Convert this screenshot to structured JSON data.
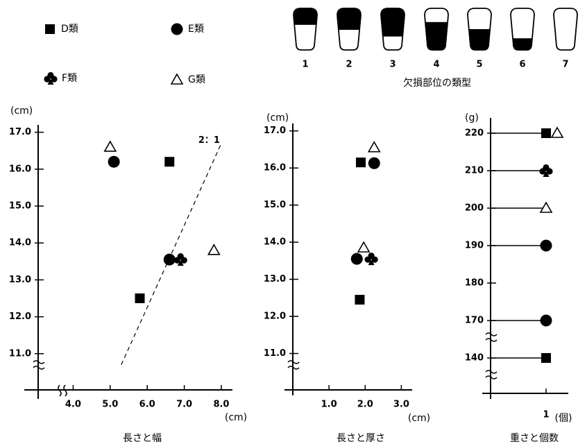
{
  "legend": [
    {
      "name": "D類",
      "marker": "square"
    },
    {
      "name": "E類",
      "marker": "circle"
    },
    {
      "name": "F類",
      "marker": "club"
    },
    {
      "name": "G類",
      "marker": "triangle"
    }
  ],
  "fracture_types": {
    "caption": "欠損部位の類型",
    "labels": [
      "1",
      "2",
      "3",
      "4",
      "5",
      "6",
      "7"
    ]
  },
  "chart_data": [
    {
      "type": "scatter",
      "title": "長さと幅",
      "xlabel": "(cm)",
      "ylabel": "(cm)",
      "xlim": [
        3.0,
        8.3
      ],
      "xticks": [
        {
          "value": 4,
          "label": "4.0"
        },
        {
          "value": 5,
          "label": "5.0"
        },
        {
          "value": 6,
          "label": "6.0"
        },
        {
          "value": 7,
          "label": "7.0"
        },
        {
          "value": 8,
          "label": "8.0"
        }
      ],
      "ylim": [
        10.0,
        17.2
      ],
      "yticks": [
        {
          "value": 11,
          "label": "11.0"
        },
        {
          "value": 12,
          "label": "12.0"
        },
        {
          "value": 13,
          "label": "13.0"
        },
        {
          "value": 14,
          "label": "14.0"
        },
        {
          "value": 15,
          "label": "15.0"
        },
        {
          "value": 16,
          "label": "16.0"
        },
        {
          "value": 17,
          "label": "17.0"
        }
      ],
      "reference_line": {
        "label": "2：1",
        "x": [
          5.3,
          8.0
        ],
        "y": [
          10.7,
          16.7
        ]
      },
      "series": [
        {
          "marker": "square",
          "color": "#000000",
          "x": [
            6.6,
            5.8
          ],
          "y": [
            16.2,
            12.5
          ]
        },
        {
          "marker": "circle",
          "color": "#000000",
          "x": [
            5.1,
            6.6
          ],
          "y": [
            16.2,
            13.55
          ]
        },
        {
          "marker": "club",
          "color": "#000000",
          "x": [
            6.9
          ],
          "y": [
            13.55
          ]
        },
        {
          "marker": "triangle",
          "color": "#000000",
          "x": [
            5.0,
            7.8
          ],
          "y": [
            16.6,
            13.8
          ]
        }
      ]
    },
    {
      "type": "scatter",
      "title": "長さと厚さ",
      "xlabel": "(cm)",
      "ylabel": "(cm)",
      "xlim": [
        0,
        3.3
      ],
      "xticks": [
        {
          "value": 1,
          "label": "1.0"
        },
        {
          "value": 2,
          "label": "2.0"
        },
        {
          "value": 3,
          "label": "3.0"
        }
      ],
      "ylim": [
        10.0,
        17.2
      ],
      "yticks": [
        {
          "value": 11,
          "label": "11.0"
        },
        {
          "value": 12,
          "label": "12.0"
        },
        {
          "value": 13,
          "label": "13.0"
        },
        {
          "value": 14,
          "label": "14.0"
        },
        {
          "value": 15,
          "label": "15.0"
        },
        {
          "value": 16,
          "label": "16.0"
        },
        {
          "value": 17,
          "label": "17.0"
        }
      ],
      "series": [
        {
          "marker": "square",
          "color": "#000000",
          "x": [
            1.88,
            1.85
          ],
          "y": [
            16.15,
            12.45
          ]
        },
        {
          "marker": "circle",
          "color": "#000000",
          "x": [
            2.25,
            1.77
          ],
          "y": [
            16.13,
            13.55
          ]
        },
        {
          "marker": "club",
          "color": "#000000",
          "x": [
            2.17
          ],
          "y": [
            13.55
          ]
        },
        {
          "marker": "triangle",
          "color": "#000000",
          "x": [
            2.25,
            1.96
          ],
          "y": [
            16.55,
            13.85
          ]
        }
      ]
    },
    {
      "type": "lollipop",
      "title": "重さと個数",
      "xlabel": "(個)",
      "ylabel": "(g)",
      "xlim": [
        0,
        1.4
      ],
      "xticks": [
        1
      ],
      "ylim": [
        130,
        224
      ],
      "ybreak": [
        140,
        170
      ],
      "yticks": [
        140,
        170,
        180,
        190,
        200,
        210,
        220
      ],
      "series": [
        {
          "marker": "square",
          "color": "#000000",
          "x": [
            1,
            1
          ],
          "y": [
            220,
            140
          ]
        },
        {
          "marker": "circle",
          "color": "#000000",
          "x": [
            1,
            1
          ],
          "y": [
            190,
            170
          ]
        },
        {
          "marker": "club",
          "color": "#000000",
          "x": [
            1
          ],
          "y": [
            210
          ]
        },
        {
          "marker": "triangle",
          "color": "#000000",
          "x": [
            1,
            1
          ],
          "y": [
            220,
            200
          ]
        }
      ]
    }
  ]
}
